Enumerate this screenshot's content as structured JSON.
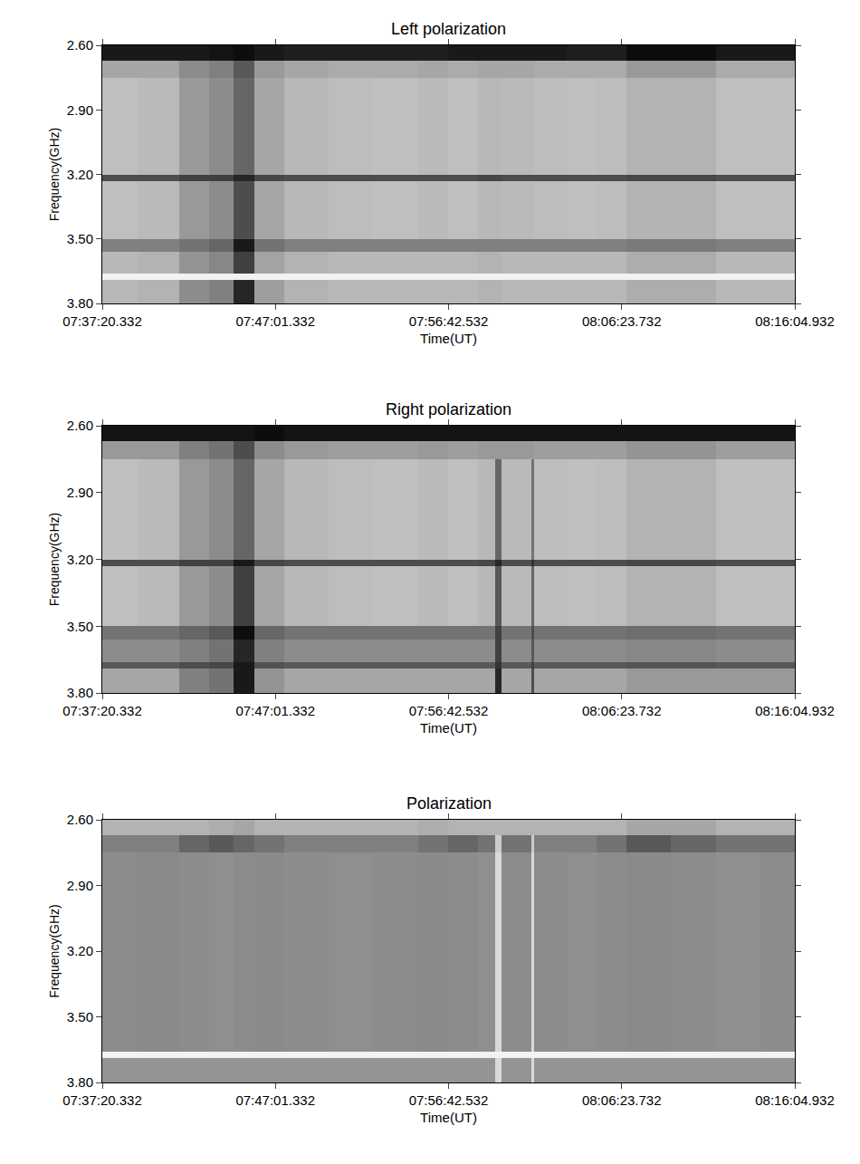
{
  "chart_data": [
    {
      "type": "heatmap",
      "title": "Left polarization",
      "xlabel": "Time(UT)",
      "ylabel": "Frequency(GHz)",
      "x": [
        27440.332,
        27560,
        27700,
        27800,
        27880,
        27950,
        28050,
        28200,
        28350,
        28500,
        28600,
        28700,
        28760,
        28780,
        28880,
        28890,
        29000,
        29100,
        29200,
        29350,
        29500,
        29650,
        29764.932
      ],
      "y": [
        2.6,
        2.67,
        2.75,
        2.9,
        3.05,
        3.2,
        3.23,
        3.35,
        3.5,
        3.56,
        3.66,
        3.69,
        3.8
      ],
      "z": [
        [
          0.9,
          0.9,
          0.9,
          0.92,
          0.95,
          0.9,
          0.88,
          0.88,
          0.88,
          0.88,
          0.9,
          0.9,
          0.9,
          0.9,
          0.9,
          0.9,
          0.88,
          0.88,
          0.95,
          0.95,
          0.9,
          0.9
        ],
        [
          0.35,
          0.35,
          0.45,
          0.5,
          0.65,
          0.4,
          0.35,
          0.33,
          0.33,
          0.35,
          0.33,
          0.35,
          0.35,
          0.35,
          0.35,
          0.33,
          0.33,
          0.33,
          0.4,
          0.4,
          0.33,
          0.33
        ],
        [
          0.25,
          0.27,
          0.4,
          0.45,
          0.6,
          0.35,
          0.28,
          0.26,
          0.25,
          0.27,
          0.25,
          0.28,
          0.28,
          0.27,
          0.27,
          0.26,
          0.25,
          0.26,
          0.3,
          0.3,
          0.25,
          0.25
        ],
        [
          0.25,
          0.27,
          0.4,
          0.45,
          0.6,
          0.35,
          0.28,
          0.26,
          0.25,
          0.27,
          0.25,
          0.28,
          0.28,
          0.27,
          0.27,
          0.26,
          0.25,
          0.26,
          0.3,
          0.3,
          0.25,
          0.25
        ],
        [
          0.25,
          0.27,
          0.4,
          0.45,
          0.6,
          0.35,
          0.28,
          0.26,
          0.25,
          0.27,
          0.25,
          0.28,
          0.28,
          0.27,
          0.27,
          0.26,
          0.25,
          0.26,
          0.3,
          0.3,
          0.25,
          0.25
        ],
        [
          0.7,
          0.7,
          0.75,
          0.75,
          0.85,
          0.72,
          0.7,
          0.7,
          0.7,
          0.7,
          0.7,
          0.72,
          0.72,
          0.7,
          0.7,
          0.7,
          0.7,
          0.7,
          0.72,
          0.72,
          0.7,
          0.7
        ],
        [
          0.25,
          0.27,
          0.4,
          0.45,
          0.7,
          0.35,
          0.28,
          0.26,
          0.25,
          0.27,
          0.25,
          0.28,
          0.28,
          0.27,
          0.27,
          0.26,
          0.25,
          0.26,
          0.3,
          0.3,
          0.25,
          0.25
        ],
        [
          0.25,
          0.27,
          0.4,
          0.45,
          0.7,
          0.35,
          0.28,
          0.26,
          0.25,
          0.27,
          0.25,
          0.28,
          0.28,
          0.27,
          0.27,
          0.26,
          0.25,
          0.26,
          0.3,
          0.3,
          0.25,
          0.25
        ],
        [
          0.5,
          0.5,
          0.55,
          0.6,
          0.9,
          0.55,
          0.5,
          0.5,
          0.5,
          0.5,
          0.5,
          0.5,
          0.5,
          0.5,
          0.5,
          0.5,
          0.5,
          0.5,
          0.52,
          0.52,
          0.5,
          0.5
        ],
        [
          0.28,
          0.3,
          0.42,
          0.47,
          0.75,
          0.36,
          0.3,
          0.28,
          0.28,
          0.28,
          0.28,
          0.3,
          0.3,
          0.28,
          0.28,
          0.28,
          0.28,
          0.28,
          0.32,
          0.32,
          0.28,
          0.28
        ],
        [
          0.05,
          0.05,
          0.05,
          0.05,
          0.05,
          0.05,
          0.05,
          0.05,
          0.05,
          0.05,
          0.05,
          0.05,
          0.05,
          0.05,
          0.05,
          0.05,
          0.05,
          0.05,
          0.05,
          0.05,
          0.05,
          0.05
        ],
        [
          0.28,
          0.3,
          0.45,
          0.5,
          0.85,
          0.38,
          0.3,
          0.28,
          0.28,
          0.28,
          0.28,
          0.3,
          0.3,
          0.28,
          0.28,
          0.28,
          0.28,
          0.28,
          0.32,
          0.32,
          0.28,
          0.28
        ]
      ],
      "zlim": [
        0,
        1
      ],
      "xlim": [
        27440.332,
        29764.932
      ],
      "xticks": [
        {
          "value": 27440.332,
          "label": "07:37:20.332"
        },
        {
          "value": 28021.332,
          "label": "07:47:01.332"
        },
        {
          "value": 28602.532,
          "label": "07:56:42.532"
        },
        {
          "value": 29183.732,
          "label": "08:06:23.732"
        },
        {
          "value": 29764.932,
          "label": "08:16:04.932"
        }
      ],
      "ylim": [
        3.8,
        2.6
      ],
      "yticks": [
        {
          "value": 2.6,
          "label": "2.60"
        },
        {
          "value": 2.9,
          "label": "2.90"
        },
        {
          "value": 3.2,
          "label": "3.20"
        },
        {
          "value": 3.5,
          "label": "3.50"
        },
        {
          "value": 3.8,
          "label": "3.80"
        }
      ]
    },
    {
      "type": "heatmap",
      "title": "Right polarization",
      "xlabel": "Time(UT)",
      "ylabel": "Frequency(GHz)",
      "x": [
        27440.332,
        27560,
        27700,
        27800,
        27880,
        27950,
        28050,
        28200,
        28350,
        28500,
        28600,
        28700,
        28760,
        28780,
        28880,
        28890,
        29000,
        29100,
        29200,
        29350,
        29500,
        29650,
        29764.932
      ],
      "y": [
        2.6,
        2.67,
        2.75,
        2.9,
        3.05,
        3.2,
        3.23,
        3.35,
        3.5,
        3.56,
        3.66,
        3.69,
        3.8
      ],
      "z": [
        [
          0.92,
          0.92,
          0.92,
          0.92,
          0.92,
          0.95,
          0.92,
          0.92,
          0.92,
          0.92,
          0.92,
          0.92,
          0.92,
          0.92,
          0.92,
          0.92,
          0.92,
          0.92,
          0.92,
          0.92,
          0.92,
          0.92
        ],
        [
          0.4,
          0.4,
          0.5,
          0.55,
          0.7,
          0.45,
          0.4,
          0.38,
          0.38,
          0.4,
          0.38,
          0.4,
          0.4,
          0.4,
          0.4,
          0.38,
          0.38,
          0.38,
          0.42,
          0.42,
          0.38,
          0.38
        ],
        [
          0.25,
          0.27,
          0.4,
          0.45,
          0.6,
          0.35,
          0.28,
          0.26,
          0.25,
          0.27,
          0.25,
          0.28,
          0.6,
          0.27,
          0.55,
          0.26,
          0.25,
          0.26,
          0.3,
          0.3,
          0.25,
          0.25
        ],
        [
          0.25,
          0.27,
          0.4,
          0.45,
          0.6,
          0.35,
          0.28,
          0.26,
          0.25,
          0.27,
          0.25,
          0.28,
          0.6,
          0.27,
          0.55,
          0.26,
          0.25,
          0.26,
          0.3,
          0.3,
          0.25,
          0.25
        ],
        [
          0.25,
          0.27,
          0.4,
          0.45,
          0.6,
          0.35,
          0.28,
          0.26,
          0.25,
          0.27,
          0.25,
          0.28,
          0.6,
          0.27,
          0.55,
          0.26,
          0.25,
          0.26,
          0.3,
          0.3,
          0.25,
          0.25
        ],
        [
          0.7,
          0.7,
          0.75,
          0.75,
          0.9,
          0.72,
          0.7,
          0.7,
          0.7,
          0.7,
          0.7,
          0.72,
          0.85,
          0.7,
          0.8,
          0.7,
          0.7,
          0.7,
          0.72,
          0.72,
          0.7,
          0.7
        ],
        [
          0.25,
          0.27,
          0.4,
          0.45,
          0.75,
          0.35,
          0.28,
          0.26,
          0.25,
          0.27,
          0.25,
          0.28,
          0.65,
          0.27,
          0.6,
          0.26,
          0.25,
          0.26,
          0.3,
          0.3,
          0.25,
          0.25
        ],
        [
          0.25,
          0.27,
          0.4,
          0.45,
          0.75,
          0.35,
          0.28,
          0.26,
          0.25,
          0.27,
          0.25,
          0.28,
          0.65,
          0.27,
          0.6,
          0.26,
          0.25,
          0.26,
          0.3,
          0.3,
          0.25,
          0.25
        ],
        [
          0.55,
          0.55,
          0.6,
          0.65,
          0.95,
          0.6,
          0.55,
          0.55,
          0.55,
          0.55,
          0.55,
          0.55,
          0.75,
          0.55,
          0.7,
          0.55,
          0.55,
          0.55,
          0.57,
          0.57,
          0.55,
          0.55
        ],
        [
          0.45,
          0.45,
          0.5,
          0.55,
          0.85,
          0.5,
          0.45,
          0.45,
          0.45,
          0.45,
          0.45,
          0.45,
          0.75,
          0.45,
          0.65,
          0.45,
          0.45,
          0.45,
          0.47,
          0.47,
          0.45,
          0.45
        ],
        [
          0.65,
          0.65,
          0.7,
          0.72,
          0.9,
          0.68,
          0.65,
          0.65,
          0.65,
          0.65,
          0.65,
          0.65,
          0.8,
          0.65,
          0.75,
          0.65,
          0.65,
          0.65,
          0.67,
          0.67,
          0.65,
          0.65
        ],
        [
          0.35,
          0.35,
          0.5,
          0.55,
          0.9,
          0.42,
          0.35,
          0.35,
          0.35,
          0.35,
          0.35,
          0.35,
          0.85,
          0.35,
          0.7,
          0.35,
          0.35,
          0.35,
          0.4,
          0.4,
          0.4,
          0.4
        ]
      ],
      "zlim": [
        0,
        1
      ],
      "xlim": [
        27440.332,
        29764.932
      ],
      "xticks": [
        {
          "value": 27440.332,
          "label": "07:37:20.332"
        },
        {
          "value": 28021.332,
          "label": "07:47:01.332"
        },
        {
          "value": 28602.532,
          "label": "07:56:42.532"
        },
        {
          "value": 29183.732,
          "label": "08:06:23.732"
        },
        {
          "value": 29764.932,
          "label": "08:16:04.932"
        }
      ],
      "ylim": [
        3.8,
        2.6
      ],
      "yticks": [
        {
          "value": 2.6,
          "label": "2.60"
        },
        {
          "value": 2.9,
          "label": "2.90"
        },
        {
          "value": 3.2,
          "label": "3.20"
        },
        {
          "value": 3.5,
          "label": "3.50"
        },
        {
          "value": 3.8,
          "label": "3.80"
        }
      ]
    },
    {
      "type": "heatmap",
      "title": "Polarization",
      "xlabel": "Time(UT)",
      "ylabel": "Frequency(GHz)",
      "x": [
        27440.332,
        27560,
        27700,
        27800,
        27880,
        27950,
        28050,
        28200,
        28350,
        28500,
        28600,
        28700,
        28760,
        28780,
        28880,
        28890,
        29000,
        29100,
        29200,
        29350,
        29500,
        29650,
        29764.932
      ],
      "y": [
        2.6,
        2.67,
        2.75,
        2.9,
        3.05,
        3.2,
        3.23,
        3.35,
        3.5,
        3.56,
        3.66,
        3.69,
        3.8
      ],
      "z": [
        [
          0.3,
          0.3,
          0.3,
          0.32,
          0.35,
          0.3,
          0.3,
          0.3,
          0.3,
          0.32,
          0.3,
          0.3,
          0.3,
          0.3,
          0.3,
          0.3,
          0.3,
          0.3,
          0.35,
          0.35,
          0.3,
          0.3
        ],
        [
          0.5,
          0.5,
          0.6,
          0.65,
          0.6,
          0.55,
          0.5,
          0.5,
          0.5,
          0.55,
          0.6,
          0.55,
          0.2,
          0.55,
          0.2,
          0.5,
          0.5,
          0.55,
          0.65,
          0.6,
          0.55,
          0.55
        ],
        [
          0.45,
          0.46,
          0.45,
          0.44,
          0.45,
          0.46,
          0.45,
          0.44,
          0.45,
          0.46,
          0.45,
          0.44,
          0.15,
          0.45,
          0.15,
          0.45,
          0.44,
          0.45,
          0.46,
          0.45,
          0.44,
          0.45
        ],
        [
          0.45,
          0.46,
          0.45,
          0.44,
          0.45,
          0.46,
          0.45,
          0.44,
          0.45,
          0.46,
          0.45,
          0.44,
          0.15,
          0.45,
          0.15,
          0.45,
          0.44,
          0.45,
          0.46,
          0.45,
          0.44,
          0.45
        ],
        [
          0.45,
          0.46,
          0.45,
          0.44,
          0.45,
          0.46,
          0.45,
          0.44,
          0.45,
          0.46,
          0.45,
          0.44,
          0.15,
          0.45,
          0.15,
          0.45,
          0.44,
          0.45,
          0.46,
          0.45,
          0.44,
          0.45
        ],
        [
          0.45,
          0.46,
          0.45,
          0.44,
          0.45,
          0.46,
          0.45,
          0.44,
          0.45,
          0.46,
          0.45,
          0.44,
          0.15,
          0.45,
          0.15,
          0.45,
          0.44,
          0.45,
          0.46,
          0.45,
          0.44,
          0.45
        ],
        [
          0.45,
          0.46,
          0.45,
          0.44,
          0.45,
          0.46,
          0.45,
          0.44,
          0.45,
          0.46,
          0.45,
          0.44,
          0.15,
          0.45,
          0.15,
          0.45,
          0.44,
          0.45,
          0.46,
          0.45,
          0.44,
          0.45
        ],
        [
          0.45,
          0.46,
          0.45,
          0.44,
          0.45,
          0.46,
          0.45,
          0.44,
          0.45,
          0.46,
          0.45,
          0.44,
          0.15,
          0.45,
          0.15,
          0.45,
          0.44,
          0.45,
          0.46,
          0.45,
          0.44,
          0.45
        ],
        [
          0.45,
          0.46,
          0.45,
          0.44,
          0.45,
          0.46,
          0.45,
          0.44,
          0.45,
          0.46,
          0.45,
          0.44,
          0.15,
          0.45,
          0.15,
          0.45,
          0.44,
          0.45,
          0.46,
          0.45,
          0.44,
          0.45
        ],
        [
          0.45,
          0.46,
          0.45,
          0.44,
          0.45,
          0.46,
          0.45,
          0.44,
          0.45,
          0.46,
          0.45,
          0.44,
          0.15,
          0.45,
          0.15,
          0.45,
          0.44,
          0.45,
          0.46,
          0.45,
          0.44,
          0.45
        ],
        [
          0.05,
          0.05,
          0.05,
          0.05,
          0.05,
          0.05,
          0.05,
          0.05,
          0.05,
          0.05,
          0.05,
          0.05,
          0.05,
          0.05,
          0.05,
          0.05,
          0.05,
          0.05,
          0.05,
          0.05,
          0.05,
          0.05
        ],
        [
          0.42,
          0.42,
          0.42,
          0.42,
          0.42,
          0.42,
          0.42,
          0.42,
          0.42,
          0.42,
          0.42,
          0.42,
          0.15,
          0.42,
          0.15,
          0.42,
          0.42,
          0.42,
          0.42,
          0.42,
          0.42,
          0.42
        ]
      ],
      "zlim": [
        0,
        1
      ],
      "xlim": [
        27440.332,
        29764.932
      ],
      "xticks": [
        {
          "value": 27440.332,
          "label": "07:37:20.332"
        },
        {
          "value": 28021.332,
          "label": "07:47:01.332"
        },
        {
          "value": 28602.532,
          "label": "07:56:42.532"
        },
        {
          "value": 29183.732,
          "label": "08:06:23.732"
        },
        {
          "value": 29764.932,
          "label": "08:16:04.932"
        }
      ],
      "ylim": [
        3.8,
        2.6
      ],
      "yticks": [
        {
          "value": 2.6,
          "label": "2.60"
        },
        {
          "value": 2.9,
          "label": "2.90"
        },
        {
          "value": 3.2,
          "label": "3.20"
        },
        {
          "value": 3.5,
          "label": "3.50"
        },
        {
          "value": 3.8,
          "label": "3.80"
        }
      ]
    }
  ]
}
